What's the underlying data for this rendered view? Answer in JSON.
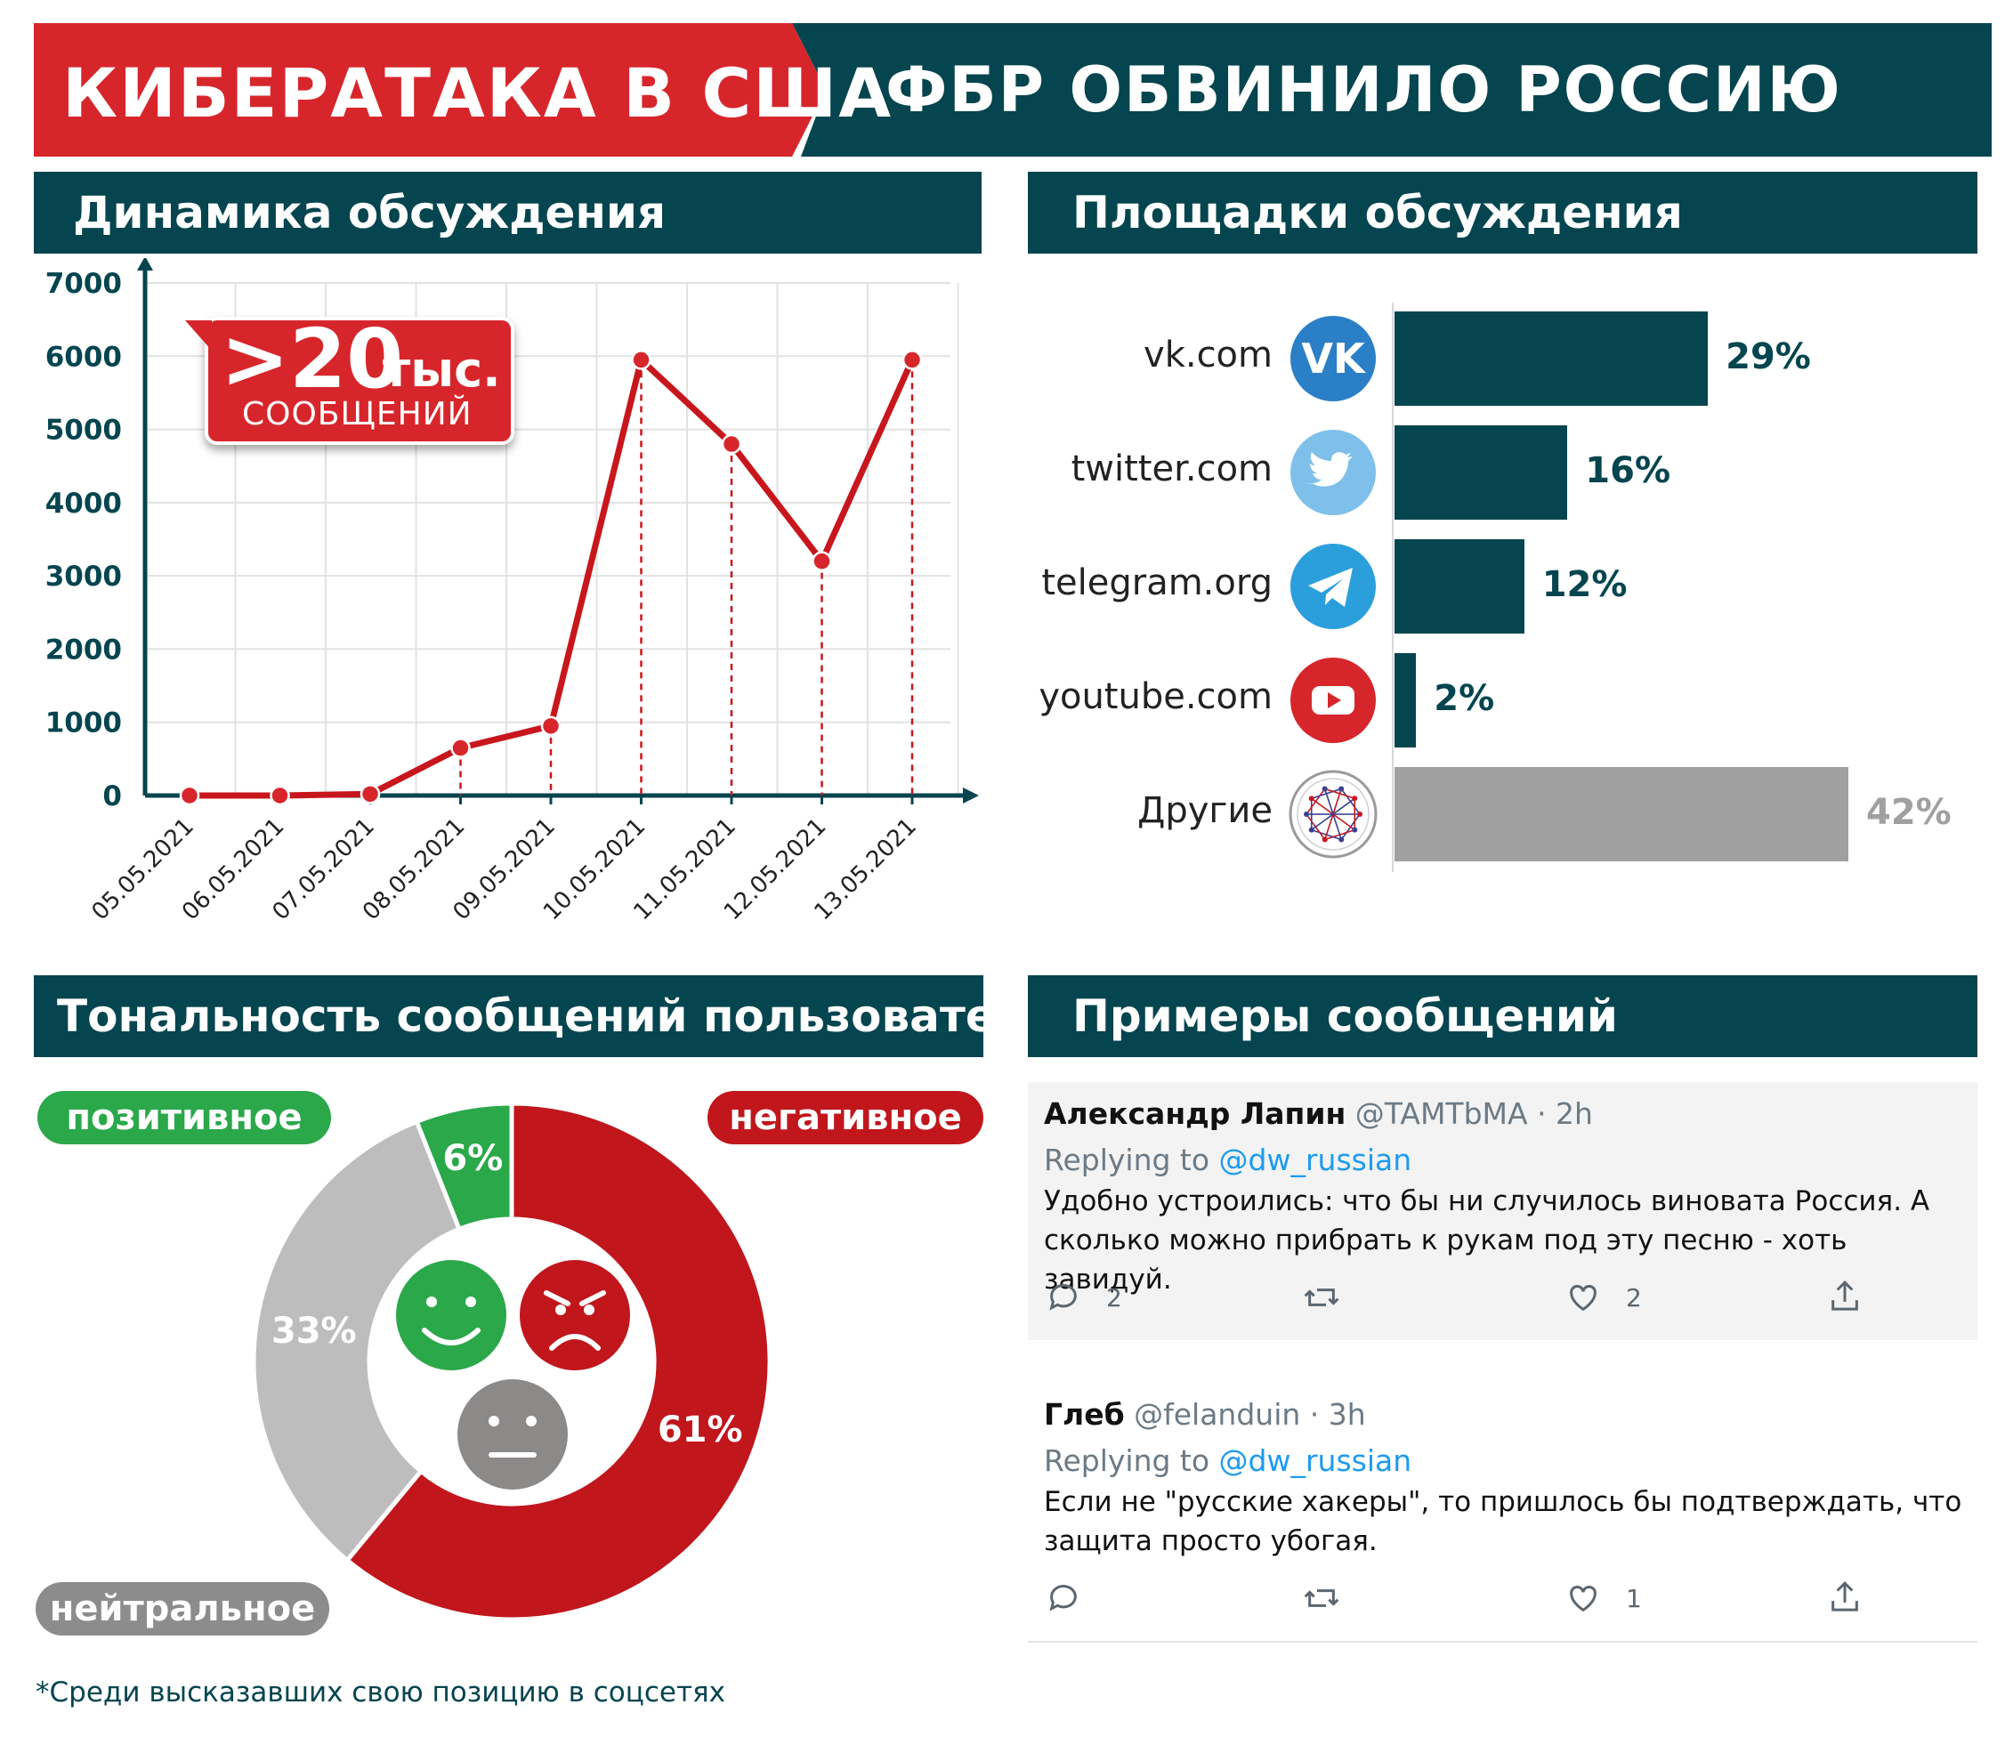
{
  "banner": {
    "left": "КИБЕРАТАКА В США",
    "right": "ФБР ОБВИНИЛО РОССИЮ",
    "left_color": "#d7262b",
    "right_color": "#04454f"
  },
  "sections": {
    "dynamics": "Динамика обсуждения",
    "platforms": "Площадки обсуждения",
    "tonality": "Тональность сообщений пользователей",
    "examples": "Примеры сообщений"
  },
  "callout": {
    "big": ">20",
    "unit": "тыс.",
    "sub": "СООБЩЕНИЙ"
  },
  "chart_data": [
    {
      "type": "line",
      "title": "",
      "xlabel": "",
      "ylabel": "",
      "categories": [
        "05.05.2021",
        "06.05.2021",
        "07.05.2021",
        "08.05.2021",
        "09.05.2021",
        "10.05.2021",
        "11.05.2021",
        "12.05.2021",
        "13.05.2021"
      ],
      "values": [
        0,
        0,
        20,
        650,
        950,
        5950,
        4800,
        3200,
        5950
      ],
      "ylim": [
        0,
        7000
      ],
      "yticks": [
        0,
        1000,
        2000,
        3000,
        4000,
        5000,
        6000,
        7000
      ],
      "grid": true,
      "line_color": "#c8161d"
    },
    {
      "type": "bar",
      "orientation": "horizontal",
      "categories": [
        "vk.com",
        "twitter.com",
        "telegram.org",
        "youtube.com",
        "Другие"
      ],
      "values": [
        29,
        16,
        12,
        2,
        42
      ],
      "labels": [
        "29%",
        "16%",
        "12%",
        "2%",
        "42%"
      ],
      "colors": [
        "#04454f",
        "#04454f",
        "#04454f",
        "#04454f",
        "#a0a0a0"
      ],
      "icons": [
        "vk-icon",
        "twitter-icon",
        "telegram-icon",
        "youtube-icon",
        "network-icon"
      ],
      "icon_colors": [
        "#2b7fc7",
        "#7ec0ea",
        "#2a9fdc",
        "#d7262b",
        "#ffffff"
      ]
    },
    {
      "type": "pie",
      "donut": true,
      "categories": [
        "негативное",
        "нейтральное",
        "позитивное"
      ],
      "values": [
        61,
        33,
        6
      ],
      "labels": [
        "61%",
        "33%",
        "6%"
      ],
      "colors": [
        "#c0161c",
        "#bdbdbd",
        "#2aa84a"
      ]
    }
  ],
  "tonality_tags": {
    "positive": "позитивное",
    "negative": "негативное",
    "neutral": "нейтральное",
    "positive_color": "#2aa84a",
    "negative_color": "#c0161c",
    "neutral_color": "#8c8c8c"
  },
  "tweets": [
    {
      "name": "Александр Лапин",
      "handle": "@TAMTbMA · 2h",
      "reply_prefix": "Replying to",
      "reply_to": "@dw_russian",
      "text": "Удобно устроились: что бы ни случилось виновата Россия. А сколько можно прибрать к рукам под эту песню - хоть завидуй.",
      "replies": "2",
      "likes": "2"
    },
    {
      "name": "Глеб",
      "handle": "@felanduin · 3h",
      "reply_prefix": "Replying to",
      "reply_to": "@dw_russian",
      "text": "Если не \"русские хакеры\", то пришлось бы подтверждать, что защита просто убогая.",
      "replies": "",
      "likes": "1"
    }
  ],
  "footnote": "*Среди высказавших свою позицию в соцсетях"
}
